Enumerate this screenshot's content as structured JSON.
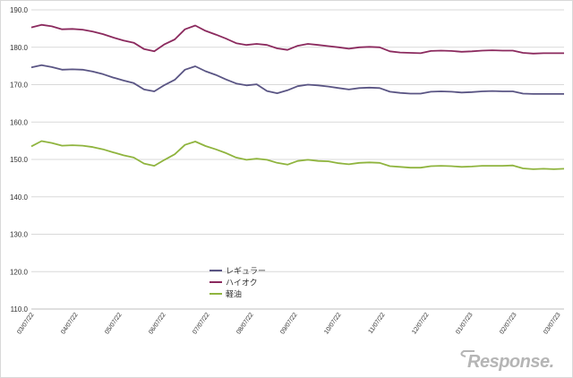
{
  "chart_data": {
    "type": "line",
    "title": "",
    "xlabel": "",
    "ylabel": "",
    "ylim": [
      110,
      190
    ],
    "yticks": [
      "110.0",
      "120.0",
      "130.0",
      "140.0",
      "150.0",
      "160.0",
      "170.0",
      "180.0",
      "190.0"
    ],
    "x_tick_labels": [
      "03/07/22",
      "04/07/22",
      "05/07/22",
      "06/07/22",
      "07/07/22",
      "08/07/22",
      "09/07/22",
      "10/07/22",
      "11/07/22",
      "12/07/22",
      "01/07/23",
      "02/07/23",
      "03/07/23"
    ],
    "points_per_series": 53,
    "grid": {
      "horizontal": true,
      "vertical": false
    },
    "legend_position": "bottom-center",
    "series": [
      {
        "name": "レギュラー",
        "color": "#5a5584",
        "values": [
          174.6,
          175.2,
          174.7,
          174.0,
          174.1,
          174.0,
          173.5,
          172.8,
          171.9,
          171.1,
          170.4,
          168.7,
          168.2,
          169.9,
          171.3,
          174.0,
          174.9,
          173.6,
          172.6,
          171.4,
          170.3,
          169.8,
          170.1,
          168.3,
          167.7,
          168.5,
          169.6,
          170.0,
          169.8,
          169.5,
          169.1,
          168.7,
          169.1,
          169.2,
          169.1,
          168.1,
          167.8,
          167.6,
          167.6,
          168.1,
          168.2,
          168.1,
          167.9,
          168.0,
          168.2,
          168.3,
          168.2,
          168.2,
          167.6,
          167.5,
          167.5,
          167.5,
          167.5
        ]
      },
      {
        "name": "ハイオク",
        "color": "#8b2a5e",
        "values": [
          185.3,
          186.0,
          185.6,
          184.8,
          184.9,
          184.7,
          184.2,
          183.5,
          182.6,
          181.8,
          181.2,
          179.5,
          178.9,
          180.8,
          182.1,
          184.8,
          185.8,
          184.4,
          183.4,
          182.3,
          181.1,
          180.6,
          180.9,
          180.6,
          179.7,
          179.3,
          180.4,
          180.9,
          180.6,
          180.3,
          180.0,
          179.6,
          180.0,
          180.1,
          180.0,
          178.9,
          178.6,
          178.5,
          178.4,
          179.0,
          179.1,
          179.0,
          178.8,
          178.9,
          179.1,
          179.2,
          179.1,
          179.1,
          178.5,
          178.3,
          178.4,
          178.4,
          178.4
        ]
      },
      {
        "name": "軽油",
        "color": "#8fb43e",
        "values": [
          153.5,
          154.9,
          154.4,
          153.7,
          153.8,
          153.7,
          153.3,
          152.7,
          151.9,
          151.1,
          150.5,
          148.9,
          148.3,
          149.9,
          151.4,
          153.9,
          154.8,
          153.6,
          152.7,
          151.7,
          150.5,
          149.9,
          150.2,
          149.9,
          149.1,
          148.6,
          149.6,
          149.9,
          149.6,
          149.5,
          149.0,
          148.7,
          149.1,
          149.2,
          149.1,
          148.2,
          148.0,
          147.8,
          147.8,
          148.2,
          148.3,
          148.2,
          148.0,
          148.1,
          148.3,
          148.3,
          148.3,
          148.4,
          147.6,
          147.4,
          147.5,
          147.4,
          147.5
        ]
      }
    ]
  },
  "watermark": {
    "text": "Response."
  }
}
